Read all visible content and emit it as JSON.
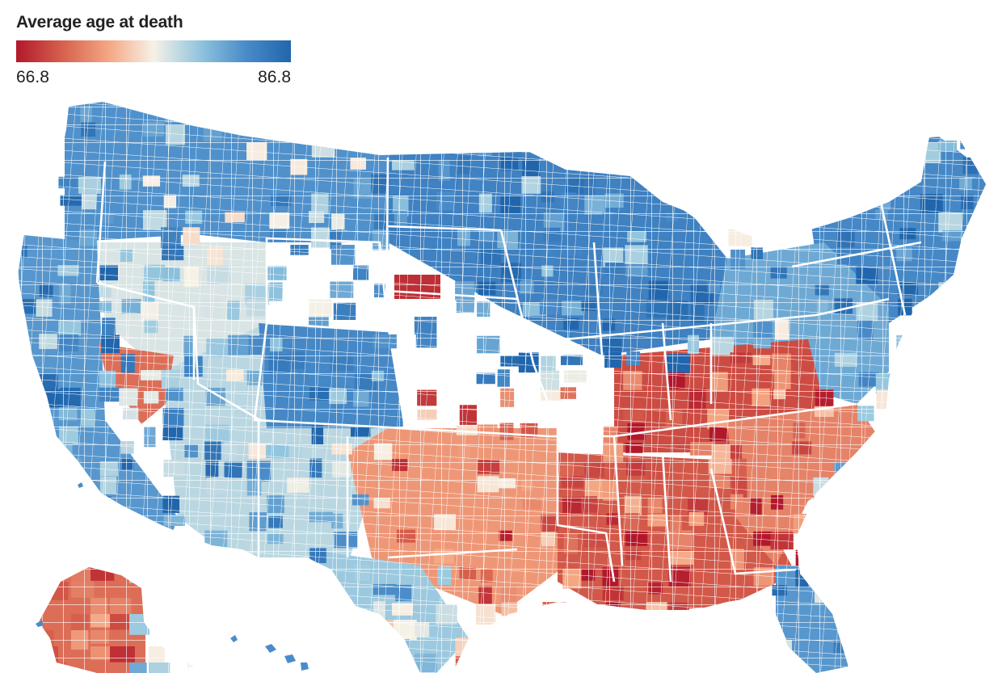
{
  "legend": {
    "title": "Average age at death",
    "min_label": "66.8",
    "max_label": "86.8",
    "stops": [
      "#b2182b",
      "#d6604d",
      "#f4a582",
      "#f7f1e6",
      "#92c5de",
      "#4a8cc9",
      "#2166ac"
    ]
  },
  "map_data": {
    "type": "choropleth",
    "subject": "US counties",
    "value_range": [
      66.8,
      86.8
    ],
    "region_values": [
      {
        "region": "great-plains-north",
        "level": 0.82
      },
      {
        "region": "upper-midwest",
        "level": 0.88
      },
      {
        "region": "new-england",
        "level": 0.85
      },
      {
        "region": "mid-atlantic",
        "level": 0.75
      },
      {
        "region": "pacific-coast",
        "level": 0.8
      },
      {
        "region": "great-basin",
        "level": 0.55
      },
      {
        "region": "southwest",
        "level": 0.6
      },
      {
        "region": "colorado-rockies",
        "level": 0.85
      },
      {
        "region": "south-central",
        "level": 0.3
      },
      {
        "region": "deep-south",
        "level": 0.15
      },
      {
        "region": "appalachia",
        "level": 0.12
      },
      {
        "region": "carolinas",
        "level": 0.25
      },
      {
        "region": "south-texas",
        "level": 0.65
      },
      {
        "region": "florida",
        "level": 0.8
      },
      {
        "region": "alaska-west",
        "level": 0.2
      },
      {
        "region": "nevada-south",
        "level": 0.2
      },
      {
        "region": "sd-reservations",
        "level": 0.05
      }
    ]
  }
}
